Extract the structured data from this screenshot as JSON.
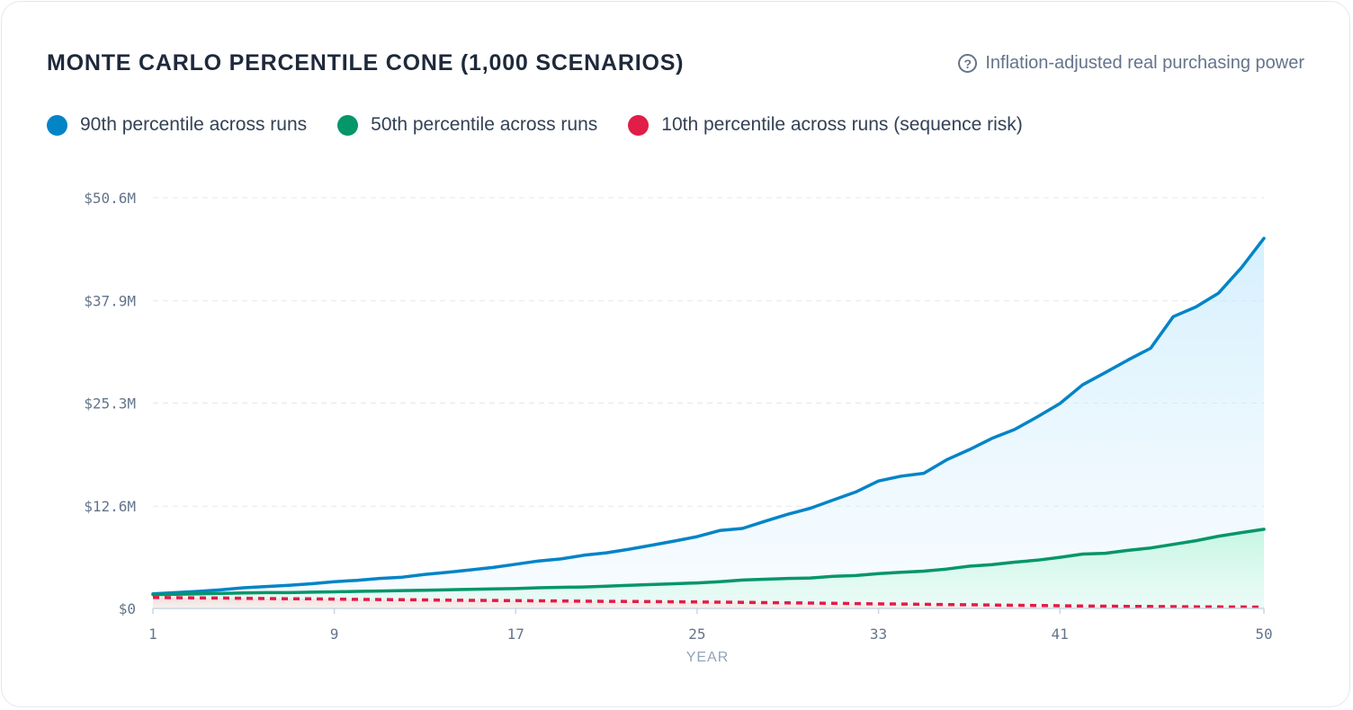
{
  "header": {
    "title": "MONTE CARLO PERCENTILE CONE (1,000 SCENARIOS)",
    "note": "Inflation-adjusted real purchasing power",
    "note_icon": "help-circle-icon"
  },
  "colors": {
    "p90": "#0284c7",
    "p50": "#059669",
    "p10": "#e11d48",
    "grid": "#e2e8f0",
    "axis": "#cbd5e1"
  },
  "chart_data": {
    "type": "area",
    "xlabel": "YEAR",
    "ylabel": "",
    "x_start": 1,
    "x_end": 50,
    "x_ticks": [
      1,
      9,
      17,
      25,
      33,
      41,
      50
    ],
    "y_ticks": [
      0,
      12.6,
      25.3,
      37.9,
      50.6
    ],
    "y_tick_labels": [
      "$0",
      "$12.6M",
      "$25.3M",
      "$37.9M",
      "$50.6M"
    ],
    "ylim": [
      0,
      50.6
    ],
    "y_unit": "$M",
    "grid": true,
    "legend_position": "top-left",
    "series": [
      {
        "key": "p90",
        "name": "90th percentile across runs",
        "style": "solid",
        "values": [
          1.8,
          1.95,
          2.1,
          2.3,
          2.55,
          2.7,
          2.85,
          3.05,
          3.3,
          3.45,
          3.7,
          3.85,
          4.2,
          4.45,
          4.75,
          5.05,
          5.45,
          5.85,
          6.1,
          6.55,
          6.85,
          7.3,
          7.8,
          8.3,
          8.85,
          9.6,
          9.85,
          10.75,
          11.6,
          12.35,
          13.35,
          14.35,
          15.7,
          16.3,
          16.65,
          18.3,
          19.55,
          20.95,
          22.05,
          23.6,
          25.25,
          27.55,
          29.05,
          30.6,
          32.05,
          35.95,
          37.15,
          38.85,
          41.95,
          45.6
        ]
      },
      {
        "key": "p50",
        "name": "50th percentile across runs",
        "style": "solid",
        "values": [
          1.7,
          1.75,
          1.8,
          1.85,
          1.9,
          1.95,
          1.95,
          2.0,
          2.05,
          2.1,
          2.15,
          2.2,
          2.25,
          2.3,
          2.35,
          2.4,
          2.45,
          2.55,
          2.6,
          2.65,
          2.75,
          2.85,
          2.95,
          3.05,
          3.15,
          3.3,
          3.5,
          3.6,
          3.7,
          3.75,
          3.95,
          4.05,
          4.3,
          4.45,
          4.6,
          4.85,
          5.2,
          5.4,
          5.7,
          5.95,
          6.3,
          6.7,
          6.8,
          7.15,
          7.45,
          7.9,
          8.35,
          8.9,
          9.35,
          9.75
        ]
      },
      {
        "key": "p10",
        "name": "10th percentile across runs (sequence risk)",
        "style": "dashed",
        "values": [
          1.35,
          1.33,
          1.3,
          1.28,
          1.25,
          1.22,
          1.2,
          1.18,
          1.15,
          1.12,
          1.1,
          1.07,
          1.05,
          1.02,
          1.0,
          0.98,
          0.96,
          0.94,
          0.92,
          0.9,
          0.88,
          0.86,
          0.84,
          0.82,
          0.8,
          0.78,
          0.75,
          0.72,
          0.69,
          0.66,
          0.63,
          0.6,
          0.57,
          0.54,
          0.51,
          0.48,
          0.45,
          0.42,
          0.39,
          0.36,
          0.33,
          0.3,
          0.28,
          0.26,
          0.24,
          0.22,
          0.2,
          0.19,
          0.18,
          0.17
        ]
      }
    ]
  }
}
